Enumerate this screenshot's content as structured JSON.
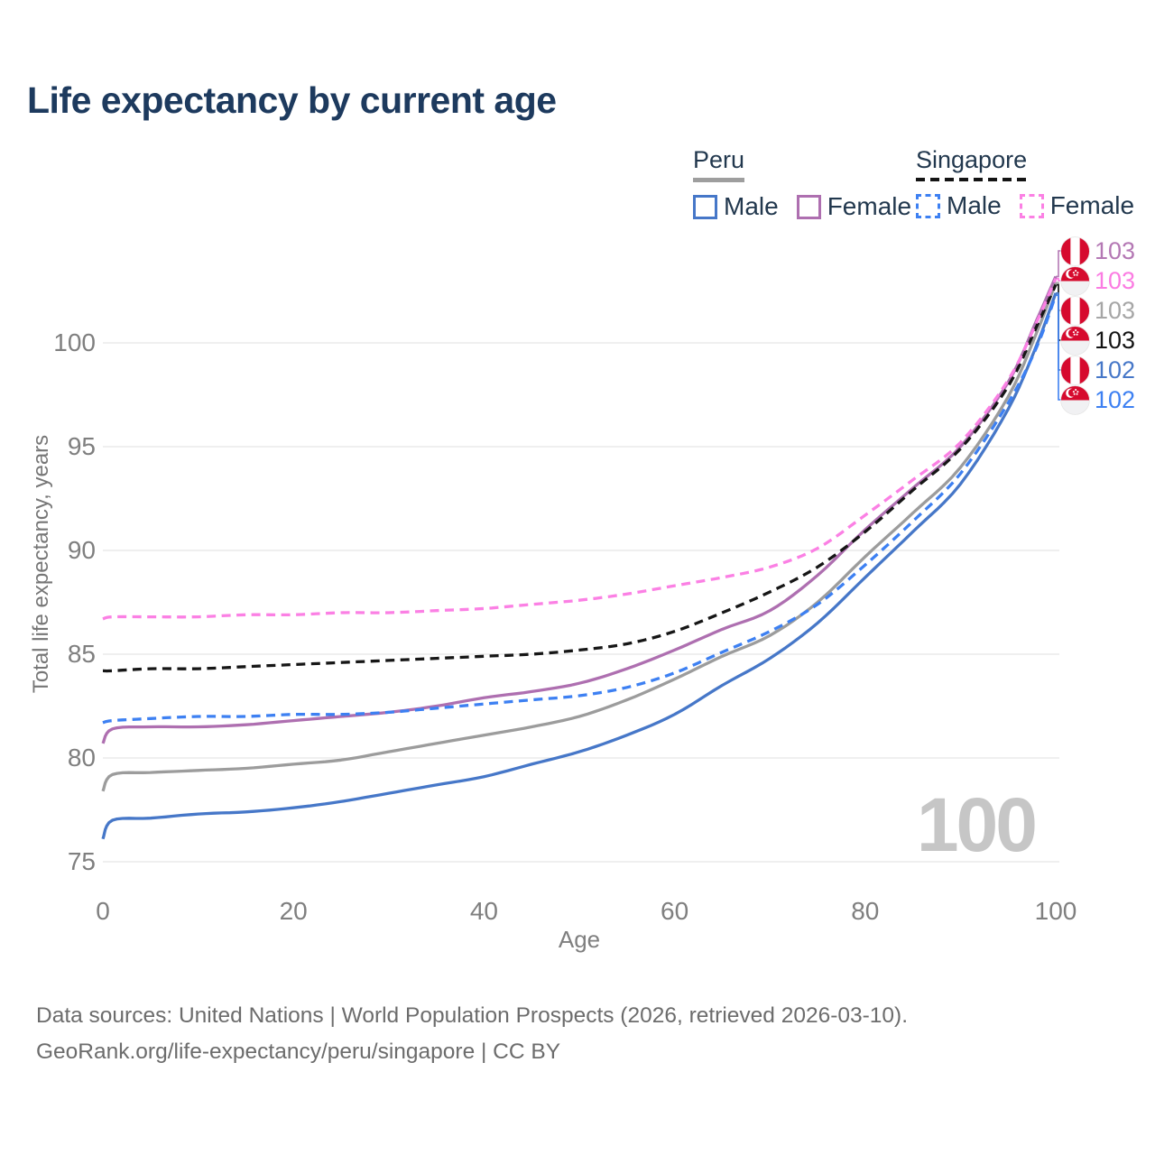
{
  "title": "Life expectancy by current age",
  "legend": {
    "groups": [
      {
        "label": "Peru",
        "line_style": "solid",
        "underline_color": "#9e9e9e",
        "items": [
          {
            "label": "Male",
            "color": "#4677c8"
          },
          {
            "label": "Female",
            "color": "#ae6fb0"
          }
        ]
      },
      {
        "label": "Singapore",
        "line_style": "dashed",
        "underline_color": "#141414",
        "items": [
          {
            "label": "Male",
            "color": "#3d80f2"
          },
          {
            "label": "Female",
            "color": "#fb80e4"
          }
        ]
      }
    ]
  },
  "axes": {
    "y": {
      "label": "Total life expectancy, years",
      "ticks": [
        75,
        80,
        85,
        90,
        95,
        100
      ]
    },
    "x": {
      "label": "Age",
      "ticks": [
        0,
        20,
        40,
        60,
        80,
        100
      ]
    }
  },
  "age_indicator": "100",
  "chart_data": {
    "type": "line",
    "title": "Life expectancy by current age",
    "xlabel": "Age",
    "ylabel": "Total life expectancy, years",
    "xlim": [
      0,
      100
    ],
    "ylim": [
      75,
      100
    ],
    "grid": "horizontal",
    "x": [
      0,
      1,
      5,
      10,
      15,
      20,
      25,
      30,
      35,
      40,
      45,
      50,
      55,
      60,
      65,
      70,
      75,
      80,
      85,
      90,
      95,
      98,
      100
    ],
    "series": [
      {
        "name": "Peru — Total",
        "country": "Peru",
        "sex": "Total",
        "color": "#9c9c9c",
        "dashed": false,
        "values": [
          78.4,
          79.2,
          79.3,
          79.4,
          79.5,
          79.7,
          79.9,
          80.3,
          80.7,
          81.1,
          81.5,
          82.0,
          82.8,
          83.8,
          84.9,
          85.9,
          87.5,
          89.7,
          91.8,
          94.0,
          97.4,
          100.5,
          102.9
        ]
      },
      {
        "name": "Peru — Male",
        "country": "Peru",
        "sex": "Male",
        "color": "#4677c8",
        "dashed": false,
        "values": [
          76.1,
          77.0,
          77.1,
          77.3,
          77.4,
          77.6,
          77.9,
          78.3,
          78.7,
          79.1,
          79.7,
          80.3,
          81.1,
          82.1,
          83.5,
          84.8,
          86.5,
          88.7,
          90.9,
          93.2,
          96.8,
          99.9,
          102.4
        ]
      },
      {
        "name": "Peru — Female",
        "country": "Peru",
        "sex": "Female",
        "color": "#ae6fb0",
        "dashed": false,
        "values": [
          80.7,
          81.4,
          81.5,
          81.5,
          81.6,
          81.8,
          82.0,
          82.2,
          82.5,
          82.9,
          83.2,
          83.6,
          84.3,
          85.2,
          86.2,
          87.1,
          88.8,
          91.0,
          93.0,
          95.0,
          98.1,
          101.1,
          103.2
        ]
      },
      {
        "name": "Singapore — Total",
        "country": "Singapore",
        "sex": "Total",
        "color": "#161616",
        "dashed": true,
        "values": [
          84.2,
          84.2,
          84.3,
          84.3,
          84.4,
          84.5,
          84.6,
          84.7,
          84.8,
          84.9,
          85.0,
          85.2,
          85.5,
          86.1,
          87.0,
          88.0,
          89.2,
          90.9,
          92.9,
          94.9,
          97.9,
          100.8,
          102.8
        ]
      },
      {
        "name": "Singapore — Male",
        "country": "Singapore",
        "sex": "Male",
        "color": "#3d80f2",
        "dashed": true,
        "values": [
          81.7,
          81.8,
          81.9,
          82.0,
          82.0,
          82.1,
          82.1,
          82.2,
          82.4,
          82.6,
          82.8,
          83.0,
          83.4,
          84.1,
          85.1,
          86.1,
          87.4,
          89.3,
          91.4,
          93.7,
          97.1,
          99.8,
          102.3
        ]
      },
      {
        "name": "Singapore — Female",
        "country": "Singapore",
        "sex": "Female",
        "color": "#fb80e4",
        "dashed": true,
        "values": [
          86.7,
          86.8,
          86.8,
          86.8,
          86.9,
          86.9,
          87.0,
          87.0,
          87.1,
          87.2,
          87.4,
          87.6,
          87.9,
          88.3,
          88.7,
          89.2,
          90.1,
          91.7,
          93.4,
          95.2,
          98.2,
          101.0,
          103.1
        ]
      }
    ]
  },
  "end_labels": [
    {
      "series": "Peru — Female",
      "value": "103",
      "color": "#b478b4",
      "flag": "peru"
    },
    {
      "series": "Singapore — Female",
      "value": "103",
      "color": "#fb7ce2",
      "flag": "singapore"
    },
    {
      "series": "Peru — Total",
      "value": "103",
      "color": "#a6a6a6",
      "flag": "peru"
    },
    {
      "series": "Singapore — Total",
      "value": "103",
      "color": "#141414",
      "flag": "singapore"
    },
    {
      "series": "Peru — Male",
      "value": "102",
      "color": "#4677c8",
      "flag": "peru"
    },
    {
      "series": "Singapore — Male",
      "value": "102",
      "color": "#3d80f2",
      "flag": "singapore"
    }
  ],
  "colors": {
    "title": "#1d3a5e",
    "grid": "#eaeaea",
    "tick_text": "#7f7f7f",
    "watermark": "#c6c6c6",
    "footer_text": "#6c6c6c",
    "flag_red": "#d60a2e"
  },
  "footer": {
    "line1": "Data sources: United Nations | World Population Prospects (2026, retrieved 2026-03-10).",
    "line2": "GeoRank.org/life-expectancy/peru/singapore | CC BY"
  }
}
